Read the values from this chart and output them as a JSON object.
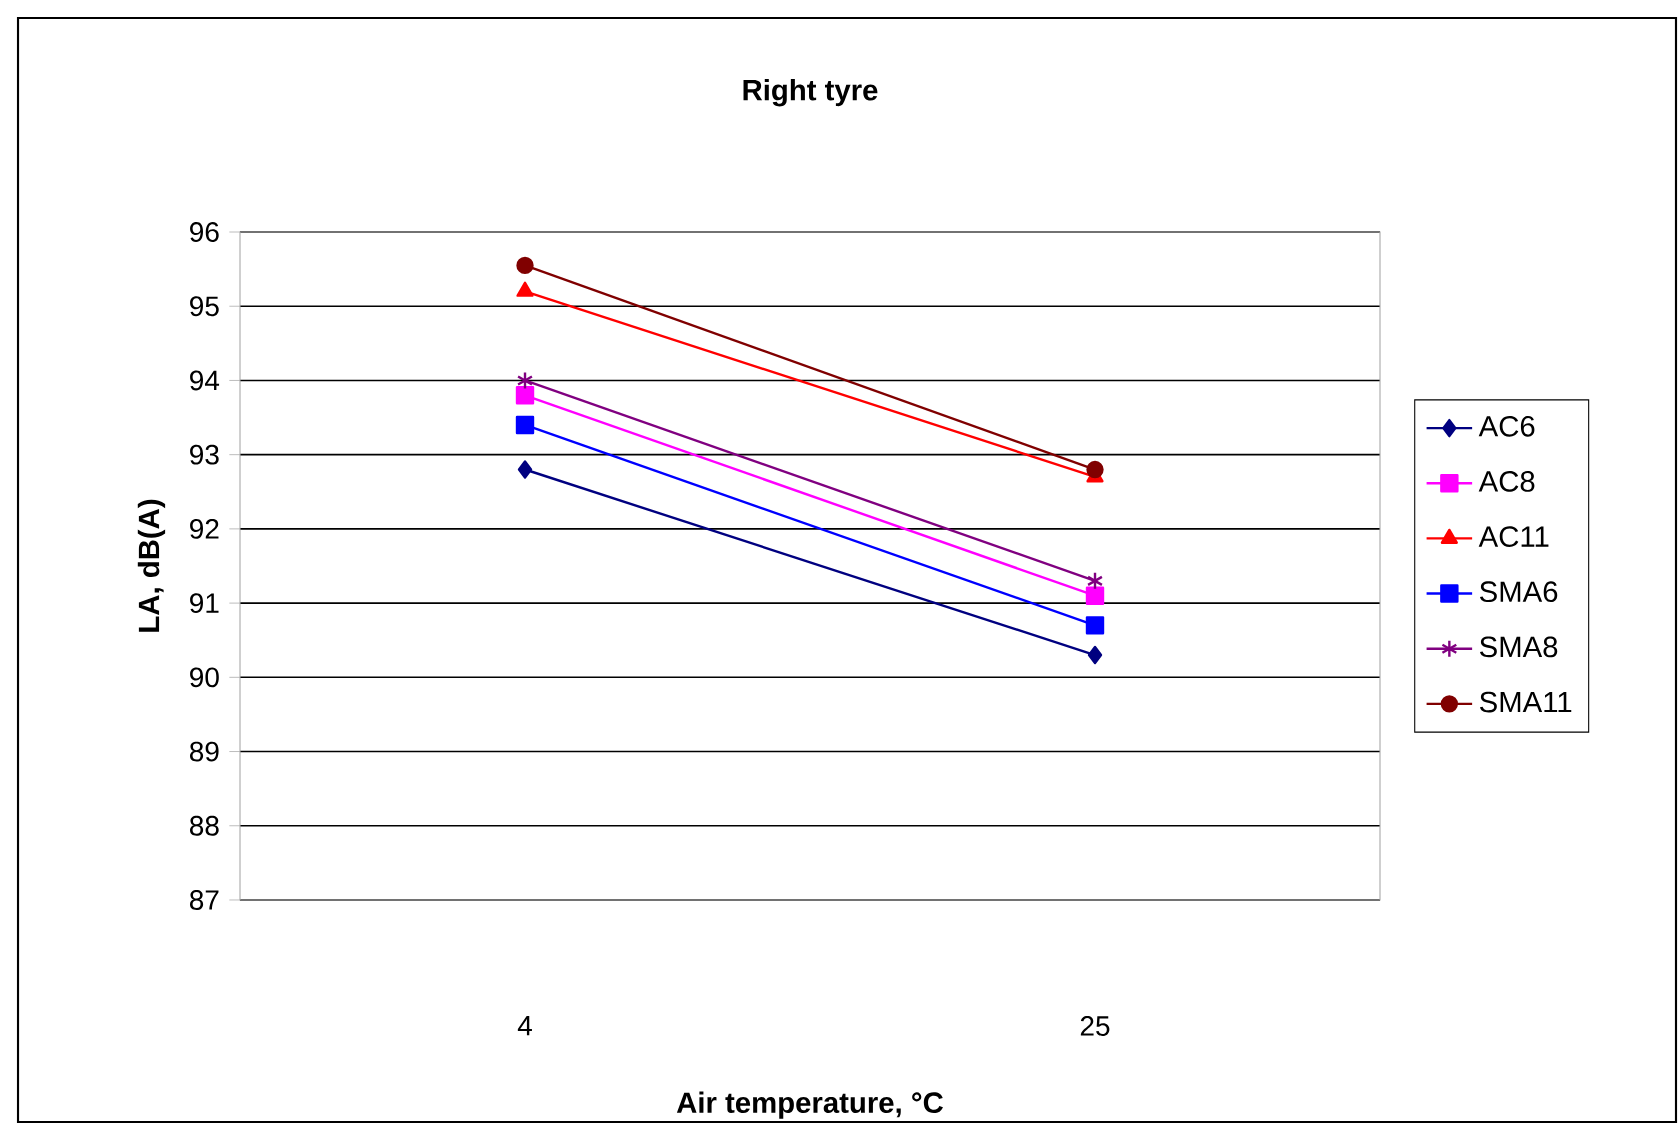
{
  "chart_data": {
    "type": "line",
    "title": "Right tyre",
    "xlabel": "Air temperature, °C",
    "ylabel": "LA, dB(A)",
    "categories": [
      "4",
      "25"
    ],
    "series": [
      {
        "name": "AC6",
        "color": "#000080",
        "marker": "diamond",
        "values": [
          92.8,
          90.3
        ]
      },
      {
        "name": "AC8",
        "color": "#ff00ff",
        "marker": "square",
        "values": [
          93.8,
          91.1
        ]
      },
      {
        "name": "AC11",
        "color": "#ff0000",
        "marker": "triangle",
        "values": [
          95.2,
          92.7
        ]
      },
      {
        "name": "SMA6",
        "color": "#0000ff",
        "marker": "square",
        "values": [
          93.4,
          90.7
        ]
      },
      {
        "name": "SMA8",
        "color": "#800080",
        "marker": "cross",
        "values": [
          94.0,
          91.3
        ]
      },
      {
        "name": "SMA11",
        "color": "#800000",
        "marker": "circle",
        "values": [
          95.55,
          92.8
        ]
      }
    ],
    "ylim": [
      87,
      96
    ],
    "yticks": [
      87,
      88,
      89,
      90,
      91,
      92,
      93,
      94,
      95,
      96
    ],
    "grid": "y",
    "legend": "right",
    "line_style": "solid"
  }
}
